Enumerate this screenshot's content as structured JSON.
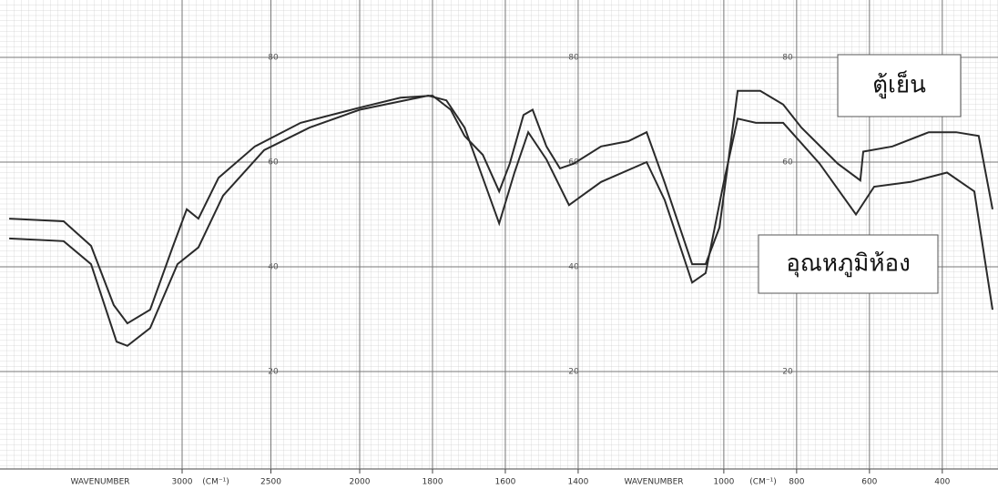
{
  "chart_data": {
    "type": "line",
    "xlabel": "WAVENUMBER",
    "xunit": "(CM⁻¹)",
    "xlim": [
      4000,
      262
    ],
    "x_scale_break": 2000,
    "xticks": [
      3000,
      2500,
      2000,
      1800,
      1600,
      1400,
      1000,
      800,
      600,
      400
    ],
    "ylim": [
      0,
      90
    ],
    "yticks": [
      20,
      40,
      60,
      80
    ],
    "grid": true,
    "series": [
      {
        "name": "ตู้เย็น",
        "color": "#2a2a2a",
        "x": [
          3974,
          3667,
          3513,
          3385,
          3308,
          3180,
          3051,
          2974,
          2908,
          2795,
          2590,
          2333,
          2000,
          1888,
          1800,
          1750,
          1712,
          1662,
          1617,
          1588,
          1550,
          1525,
          1487,
          1450,
          1412,
          1337,
          1262,
          1212,
          1162,
          1087,
          1050,
          1012,
          962,
          900,
          837,
          787,
          687,
          625,
          617,
          537,
          437,
          362,
          300,
          262
        ],
        "values": [
          49.2,
          48.7,
          44,
          32.7,
          29.2,
          31.8,
          44,
          51,
          49.2,
          57,
          63,
          67.5,
          70.4,
          72.3,
          72.7,
          70,
          65,
          61.4,
          54.4,
          59.7,
          69,
          70,
          63,
          58.8,
          59.7,
          63,
          64,
          65.7,
          56,
          40.5,
          40.5,
          47.5,
          73.6,
          73.6,
          71,
          66.6,
          59.7,
          56.5,
          62,
          63,
          65.7,
          65.7,
          65,
          51
        ]
      },
      {
        "name": "อุณหภูมิห้อง",
        "color": "#2a2a2a",
        "x": [
          3974,
          3667,
          3513,
          3369,
          3308,
          3180,
          3026,
          2908,
          2769,
          2538,
          2282,
          2000,
          1812,
          1762,
          1712,
          1662,
          1617,
          1575,
          1537,
          1487,
          1425,
          1337,
          1212,
          1162,
          1087,
          1050,
          1000,
          962,
          912,
          837,
          737,
          637,
          587,
          487,
          387,
          312,
          262
        ],
        "values": [
          45.4,
          44.9,
          40.5,
          25.7,
          24.9,
          28.3,
          40.5,
          43.7,
          53.6,
          62.3,
          66.6,
          70,
          72.7,
          71.8,
          66.6,
          57,
          48.3,
          58,
          65.7,
          60.5,
          51.8,
          56.2,
          60,
          52.7,
          37,
          38.8,
          56.2,
          68.3,
          67.5,
          67.5,
          59.7,
          50,
          55.3,
          56.2,
          58,
          54.4,
          31.8
        ]
      }
    ]
  }
}
